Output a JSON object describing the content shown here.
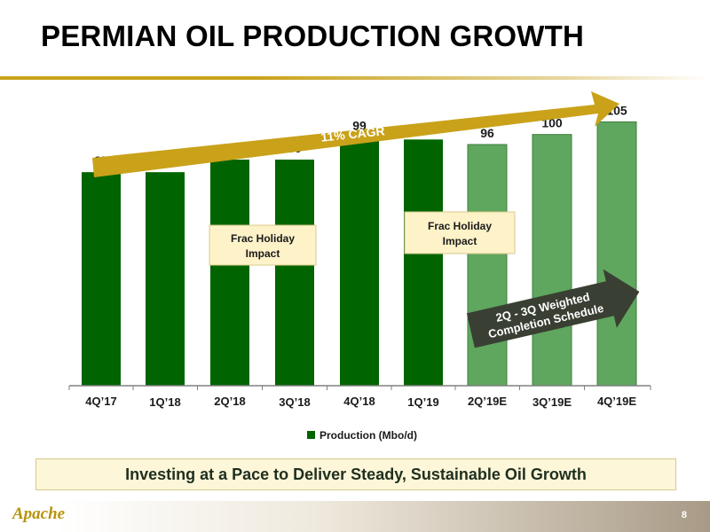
{
  "title": "PERMIAN OIL PRODUCTION GROWTH",
  "chart_data": {
    "type": "bar",
    "categories": [
      "4Q’17",
      "1Q’18",
      "2Q’18",
      "3Q’18",
      "4Q’18",
      "1Q’19",
      "2Q’19E",
      "3Q’19E",
      "4Q’19E"
    ],
    "series": [
      {
        "name": "Production (Mbo/d)",
        "values": [
          85,
          85,
          90,
          90,
          99,
          98,
          96,
          100,
          105
        ]
      }
    ],
    "estimated": [
      false,
      false,
      false,
      false,
      false,
      false,
      true,
      true,
      true
    ],
    "ylim": [
      0,
      120
    ],
    "grid": false,
    "legend": "bottom",
    "colors": {
      "actual": "#006400",
      "estimate": "#5fa65f",
      "estimate_border": "#3f7f3f"
    },
    "annotations": {
      "growth_arrow": "11% CAGR",
      "frac_note_1": "Frac Holiday Impact",
      "frac_note_2": "Frac Holiday Impact",
      "schedule_arrow_line1": "2Q - 3Q Weighted",
      "schedule_arrow_line2": "Completion Schedule"
    }
  },
  "colors": {
    "gold": "#c9a21a",
    "callout_bg": "#fdf6d8",
    "dark_arrow": "#3a3f33"
  },
  "callout": "Investing at a Pace to Deliver Steady, Sustainable Oil Growth",
  "logo_text": "Apache",
  "page_number": "8"
}
